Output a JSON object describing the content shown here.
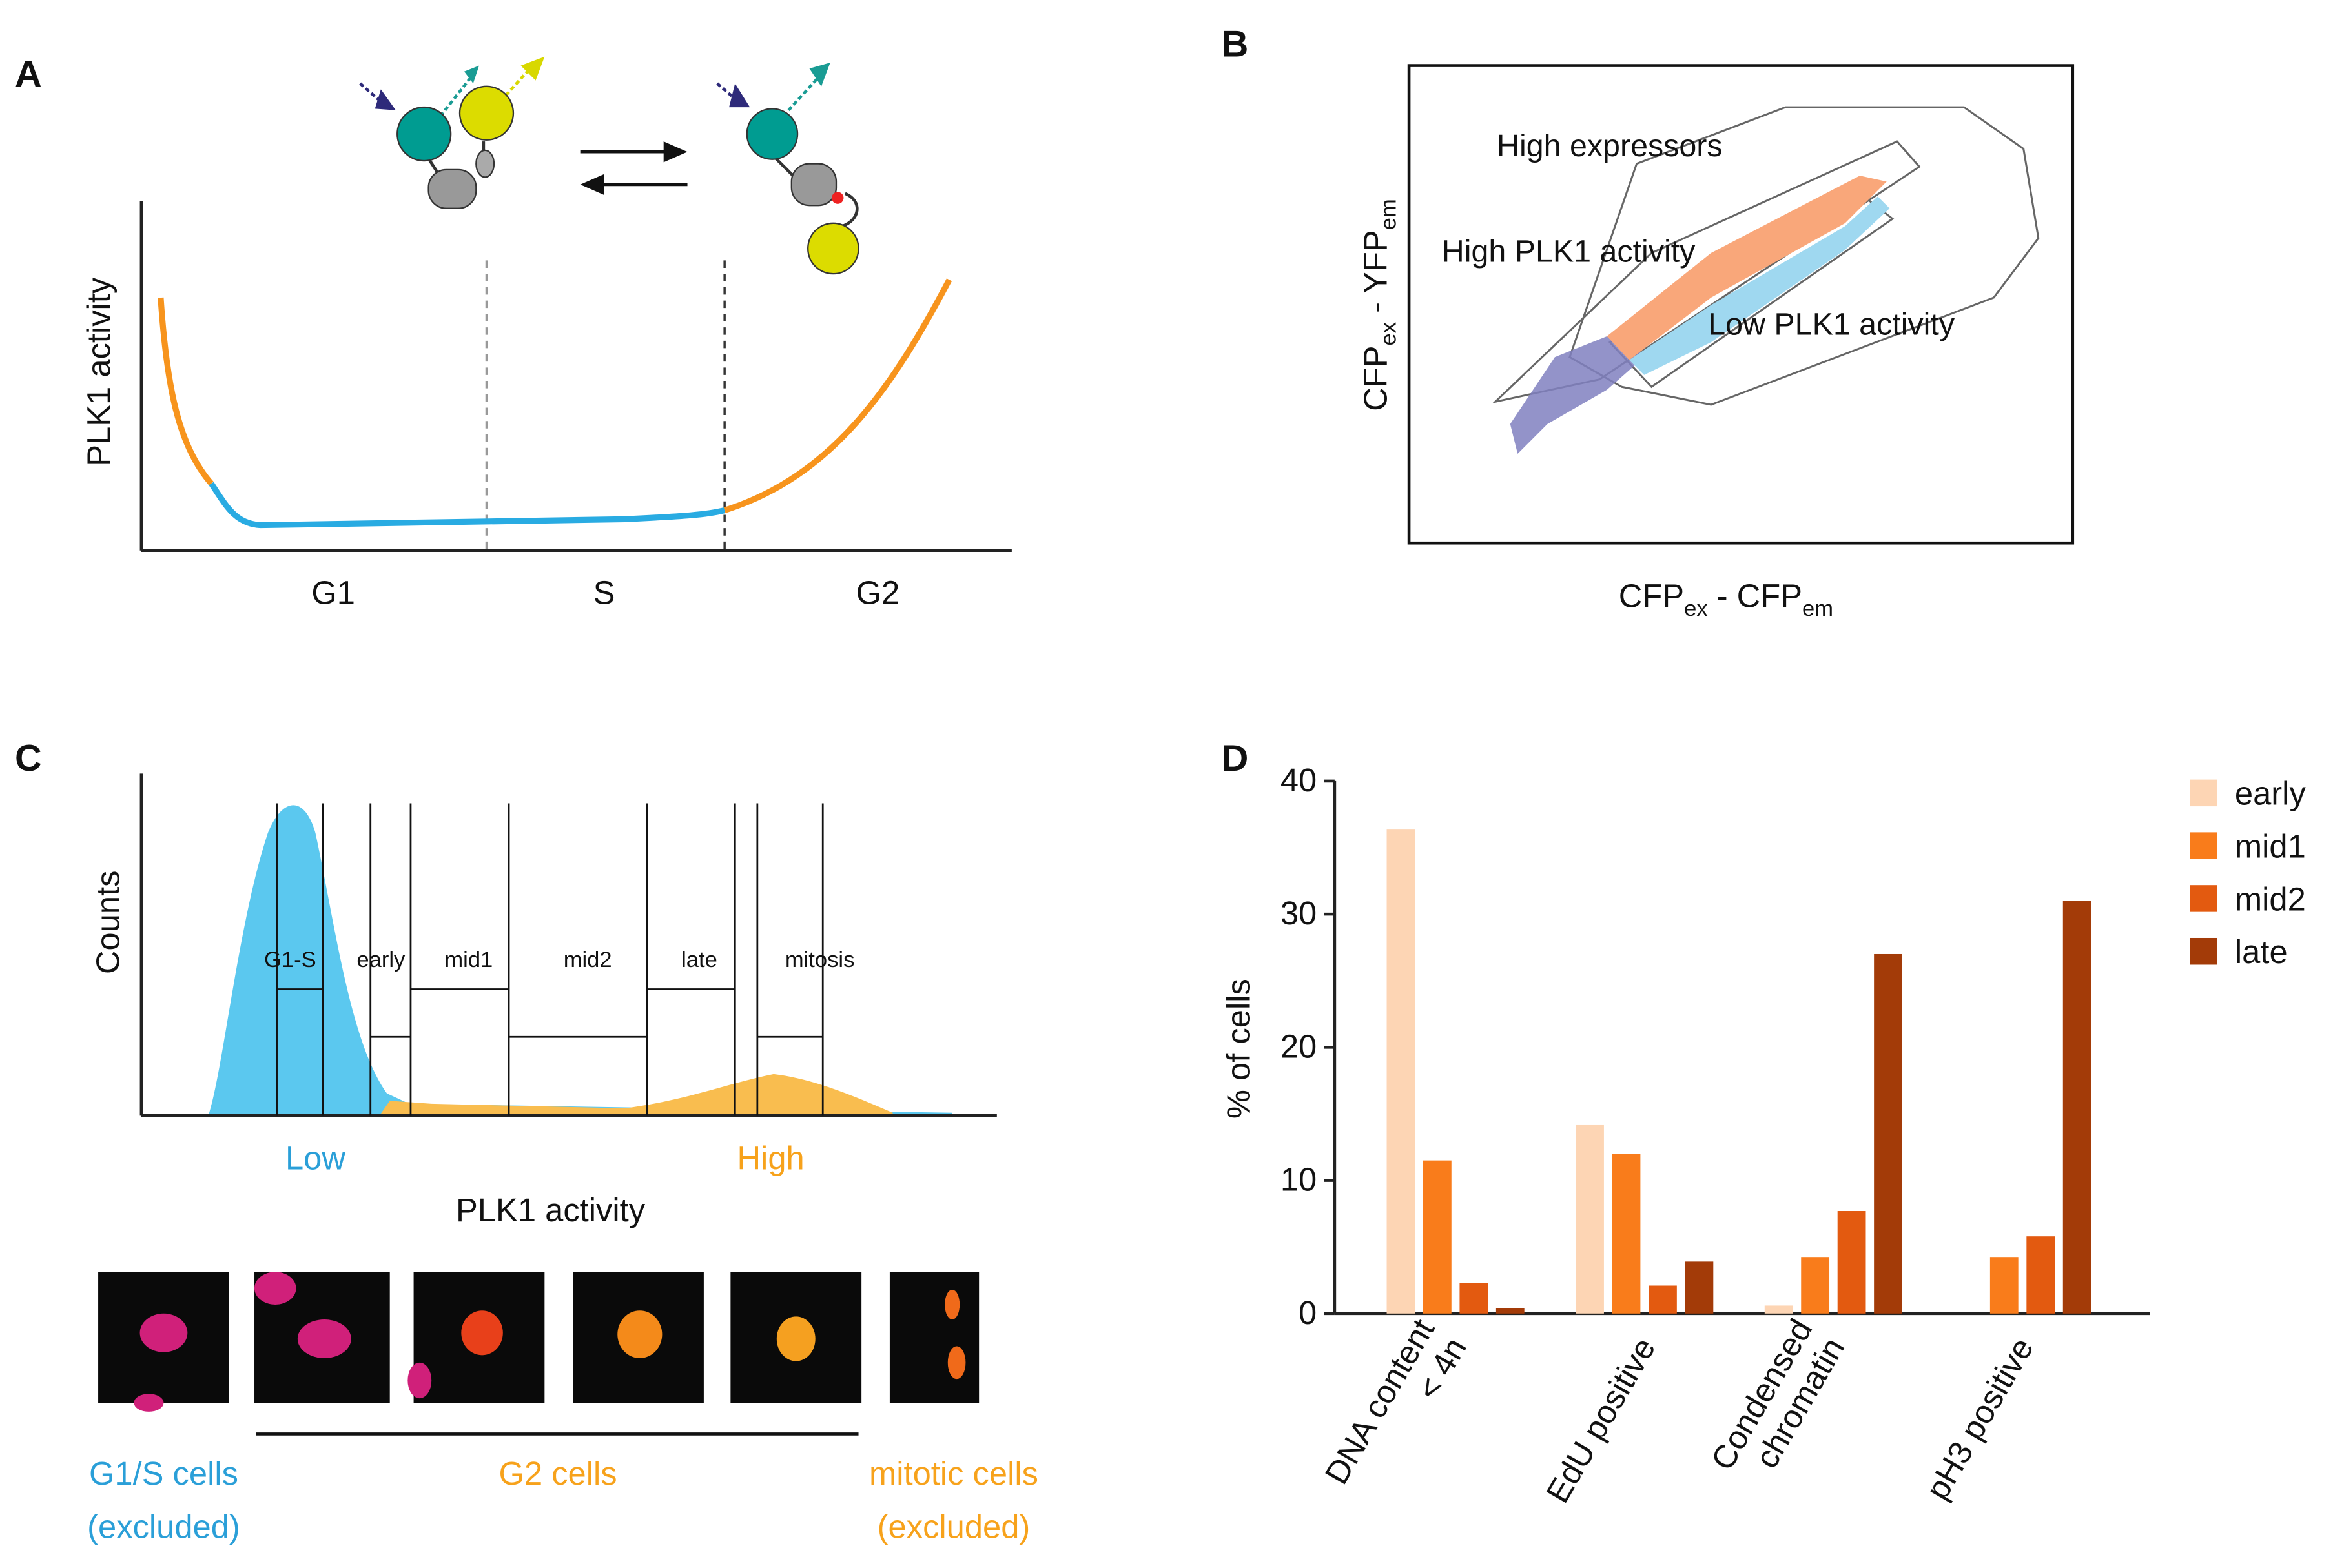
{
  "panel_a": {
    "letter": "A",
    "y_label": "PLK1 activity",
    "phases": [
      "G1",
      "S",
      "G2"
    ]
  },
  "panel_b": {
    "letter": "B",
    "gates": [
      "High expressors",
      "High PLK1 activity",
      "Low PLK1 activity"
    ],
    "y_label": [
      {
        "text": "CFP",
        "sub": "ex"
      },
      {
        "text": " - YFP",
        "sub": "em"
      }
    ],
    "x_label": [
      {
        "text": "CFP",
        "sub": "ex"
      },
      {
        "text": " - CFP",
        "sub": "em"
      }
    ]
  },
  "panel_c": {
    "letter": "C",
    "y_label": "Counts",
    "gates": [
      "G1-S",
      "early",
      "mid1",
      "mid2",
      "late",
      "mitosis"
    ],
    "low": "Low",
    "high": "High",
    "x_label": "PLK1 activity",
    "groups": [
      {
        "lines": [
          "G1/S cells",
          "(excluded)"
        ]
      },
      {
        "lines": [
          "G2 cells"
        ]
      },
      {
        "lines": [
          "mitotic cells",
          "(excluded)"
        ]
      }
    ]
  },
  "chart_data": {
    "type": "bar",
    "letter": "D",
    "y_label": "% of cells",
    "categories": [
      [
        "DNA content",
        "< 4n"
      ],
      [
        "EdU positive"
      ],
      [
        "Condensed",
        "chromatin"
      ],
      [
        "pH3 positive"
      ]
    ],
    "series": [
      {
        "name": "early",
        "color": "#fdd5b4",
        "values": [
          36.4,
          14.2,
          0.6,
          null
        ]
      },
      {
        "name": "mid1",
        "color": "#f97c1b",
        "values": [
          11.5,
          12.0,
          4.2,
          4.2
        ]
      },
      {
        "name": "mid2",
        "color": "#e35a10",
        "values": [
          2.3,
          2.1,
          7.7,
          5.8
        ]
      },
      {
        "name": "late",
        "color": "#a33b08",
        "values": [
          0.4,
          3.9,
          27.0,
          31.0
        ]
      }
    ],
    "ylim": [
      0,
      40
    ],
    "yticks": [
      0,
      10,
      20,
      30,
      40
    ],
    "legend": "right"
  }
}
